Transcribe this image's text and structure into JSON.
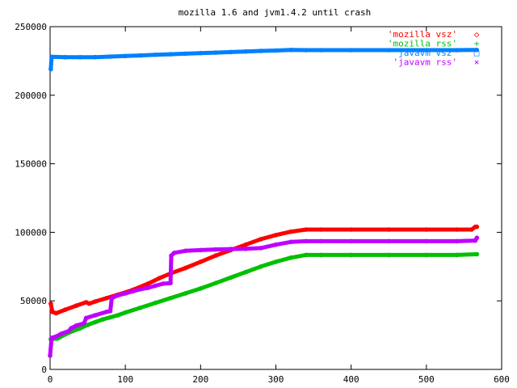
{
  "chart_data": {
    "type": "scatter",
    "title": "mozilla 1.6 and jvm1.4.2 until crash",
    "xlabel": "",
    "ylabel": "",
    "xlim": [
      0,
      600
    ],
    "ylim": [
      0,
      250000
    ],
    "x_ticks": [
      0,
      100,
      200,
      300,
      400,
      500,
      600
    ],
    "y_ticks": [
      0,
      50000,
      100000,
      150000,
      200000,
      250000
    ],
    "grid": false,
    "legend_position": "top-right",
    "series": [
      {
        "name": "'mozilla vsz'",
        "color": "#ff0000",
        "marker": "◇",
        "points": [
          [
            1,
            48000
          ],
          [
            3,
            42000
          ],
          [
            8,
            41000
          ],
          [
            20,
            43500
          ],
          [
            35,
            46500
          ],
          [
            48,
            49000
          ],
          [
            52,
            48000
          ],
          [
            60,
            49500
          ],
          [
            75,
            52000
          ],
          [
            90,
            54500
          ],
          [
            110,
            58000
          ],
          [
            130,
            62500
          ],
          [
            145,
            66500
          ],
          [
            160,
            70000
          ],
          [
            180,
            74000
          ],
          [
            200,
            78500
          ],
          [
            220,
            83000
          ],
          [
            240,
            87000
          ],
          [
            260,
            91000
          ],
          [
            280,
            95000
          ],
          [
            300,
            98000
          ],
          [
            320,
            100500
          ],
          [
            340,
            102000
          ],
          [
            360,
            102000
          ],
          [
            400,
            102000
          ],
          [
            450,
            102000
          ],
          [
            500,
            102000
          ],
          [
            540,
            102000
          ],
          [
            560,
            102000
          ],
          [
            565,
            104000
          ],
          [
            567,
            104000
          ]
        ]
      },
      {
        "name": "'mozilla rss'",
        "color": "#00c000",
        "marker": "+",
        "points": [
          [
            1,
            22000
          ],
          [
            10,
            22500
          ],
          [
            20,
            25500
          ],
          [
            30,
            28000
          ],
          [
            40,
            30000
          ],
          [
            50,
            32500
          ],
          [
            60,
            34500
          ],
          [
            70,
            36500
          ],
          [
            80,
            38000
          ],
          [
            90,
            39500
          ],
          [
            100,
            41500
          ],
          [
            120,
            45000
          ],
          [
            140,
            48500
          ],
          [
            160,
            52000
          ],
          [
            180,
            55500
          ],
          [
            200,
            59000
          ],
          [
            220,
            63000
          ],
          [
            240,
            67000
          ],
          [
            260,
            71000
          ],
          [
            280,
            75000
          ],
          [
            300,
            78500
          ],
          [
            320,
            81500
          ],
          [
            340,
            83500
          ],
          [
            360,
            83500
          ],
          [
            400,
            83500
          ],
          [
            450,
            83500
          ],
          [
            500,
            83500
          ],
          [
            540,
            83500
          ],
          [
            567,
            84000
          ]
        ]
      },
      {
        "name": "'javavm vsz'",
        "color": "#0080ff",
        "marker": "□",
        "points": [
          [
            1,
            219000
          ],
          [
            2,
            228000
          ],
          [
            20,
            227700
          ],
          [
            40,
            227700
          ],
          [
            60,
            227800
          ],
          [
            80,
            228200
          ],
          [
            100,
            228600
          ],
          [
            120,
            229000
          ],
          [
            140,
            229500
          ],
          [
            160,
            229900
          ],
          [
            180,
            230300
          ],
          [
            200,
            230700
          ],
          [
            220,
            231100
          ],
          [
            240,
            231500
          ],
          [
            260,
            231900
          ],
          [
            280,
            232300
          ],
          [
            300,
            232600
          ],
          [
            320,
            233000
          ],
          [
            340,
            232900
          ],
          [
            360,
            232900
          ],
          [
            400,
            232900
          ],
          [
            450,
            232900
          ],
          [
            500,
            232900
          ],
          [
            540,
            232900
          ],
          [
            567,
            233000
          ]
        ]
      },
      {
        "name": "'javavm rss'",
        "color": "#c000ff",
        "marker": "×",
        "points": [
          [
            0,
            10000
          ],
          [
            2,
            23000
          ],
          [
            8,
            24000
          ],
          [
            15,
            26000
          ],
          [
            25,
            28000
          ],
          [
            28,
            30000
          ],
          [
            35,
            32000
          ],
          [
            45,
            33500
          ],
          [
            48,
            37500
          ],
          [
            60,
            39500
          ],
          [
            75,
            42000
          ],
          [
            80,
            42500
          ],
          [
            82,
            52000
          ],
          [
            90,
            54000
          ],
          [
            100,
            55500
          ],
          [
            110,
            57000
          ],
          [
            120,
            58500
          ],
          [
            130,
            59500
          ],
          [
            140,
            61000
          ],
          [
            150,
            62500
          ],
          [
            160,
            63000
          ],
          [
            161,
            83000
          ],
          [
            165,
            85000
          ],
          [
            180,
            86500
          ],
          [
            200,
            87000
          ],
          [
            220,
            87500
          ],
          [
            240,
            87800
          ],
          [
            260,
            88000
          ],
          [
            280,
            88500
          ],
          [
            300,
            91000
          ],
          [
            320,
            93000
          ],
          [
            340,
            93500
          ],
          [
            360,
            93500
          ],
          [
            400,
            93500
          ],
          [
            450,
            93500
          ],
          [
            500,
            93500
          ],
          [
            540,
            93500
          ],
          [
            565,
            94000
          ],
          [
            567,
            96000
          ]
        ]
      }
    ]
  }
}
